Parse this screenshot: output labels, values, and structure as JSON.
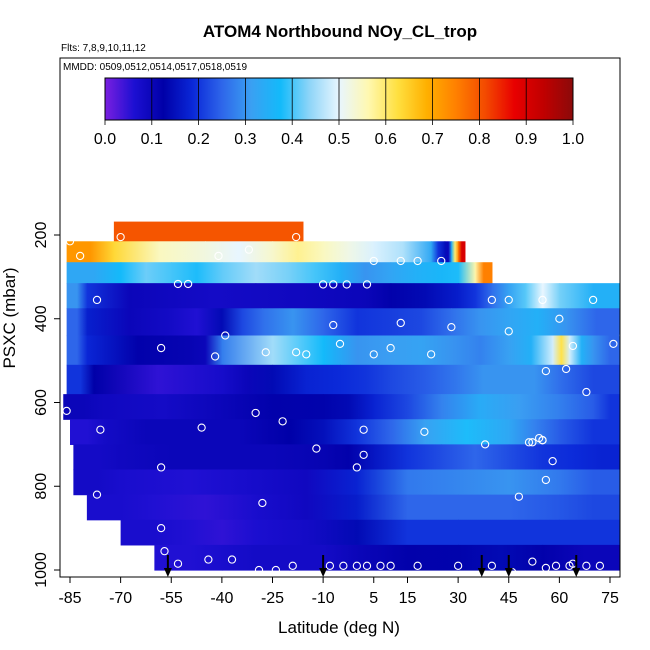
{
  "chart_data": {
    "type": "heatmap",
    "title": "ATOM4 Northbound NOy_CL_trop",
    "subtitle_flights": "Flts: 7,8,9,10,11,12",
    "subtitle_dates": "MMDD: 0509,0512,0514,0517,0518,0519",
    "xlabel": "Latitude (deg N)",
    "ylabel": "PSXC (mbar)",
    "xlim": [
      -87,
      83
    ],
    "ylim": [
      1000,
      120
    ],
    "x_ticks": [
      -85,
      -70,
      -55,
      -40,
      -25,
      -10,
      5,
      15,
      30,
      45,
      60,
      75
    ],
    "y_ticks": [
      200,
      400,
      600,
      800,
      1000
    ],
    "colorbar": {
      "range": [
        0.0,
        1.0
      ],
      "ticks": [
        "0.0",
        "0.1",
        "0.2",
        "0.3",
        "0.4",
        "0.5",
        "0.6",
        "0.7",
        "0.8",
        "0.9",
        "1.0"
      ],
      "colors": [
        "#7a1fe0",
        "#1c0fd2",
        "#0000a8",
        "#0a28d8",
        "#2e66ea",
        "#3aa0f2",
        "#13bafa",
        "#8fd5f8",
        "#e8f6ff",
        "#fff8b0",
        "#ffe040",
        "#ffb000",
        "#ff8000",
        "#f34a00",
        "#e80000",
        "#c00000",
        "#8b0a0a"
      ]
    },
    "legend": "colorbar top, horizontal",
    "bands": [
      {
        "p_top": 168,
        "p_bot": 215,
        "segments": [
          [
            -72,
            -16,
            0.8
          ]
        ]
      },
      {
        "p_top": 215,
        "p_bot": 265,
        "segments": [
          [
            -86,
            -72,
            0.72
          ],
          [
            -72,
            -45,
            0.55
          ],
          [
            -45,
            -25,
            0.5
          ],
          [
            -25,
            -10,
            0.58
          ],
          [
            -10,
            5,
            0.52
          ],
          [
            5,
            22,
            0.46
          ],
          [
            22,
            26,
            0.2
          ],
          [
            26,
            28,
            0.1
          ],
          [
            28,
            30,
            0.6
          ],
          [
            30,
            32,
            0.9
          ]
        ]
      },
      {
        "p_top": 265,
        "p_bot": 315,
        "segments": [
          [
            -86,
            -70,
            0.33
          ],
          [
            -70,
            -55,
            0.42
          ],
          [
            -55,
            -40,
            0.38
          ],
          [
            -40,
            -20,
            0.45
          ],
          [
            -20,
            -5,
            0.4
          ],
          [
            -5,
            10,
            0.3
          ],
          [
            10,
            25,
            0.35
          ],
          [
            25,
            35,
            0.38
          ],
          [
            35,
            40,
            0.75
          ]
        ]
      },
      {
        "p_top": 315,
        "p_bot": 375,
        "segments": [
          [
            -86,
            -80,
            0.3
          ],
          [
            -80,
            -55,
            0.1
          ],
          [
            -55,
            -30,
            0.08
          ],
          [
            -30,
            -5,
            0.09
          ],
          [
            -5,
            10,
            0.1
          ],
          [
            10,
            30,
            0.14
          ],
          [
            30,
            40,
            0.2
          ],
          [
            40,
            50,
            0.32
          ],
          [
            50,
            60,
            0.5
          ],
          [
            60,
            80,
            0.35
          ]
        ]
      },
      {
        "p_top": 375,
        "p_bot": 440,
        "segments": [
          [
            -86,
            -80,
            0.25
          ],
          [
            -80,
            -55,
            0.1
          ],
          [
            -55,
            -40,
            0.06
          ],
          [
            -40,
            -28,
            0.22
          ],
          [
            -28,
            -10,
            0.3
          ],
          [
            -10,
            10,
            0.2
          ],
          [
            10,
            28,
            0.22
          ],
          [
            28,
            45,
            0.3
          ],
          [
            45,
            62,
            0.35
          ],
          [
            62,
            80,
            0.25
          ]
        ]
      },
      {
        "p_top": 440,
        "p_bot": 510,
        "segments": [
          [
            -86,
            -80,
            0.25
          ],
          [
            -80,
            -50,
            0.12
          ],
          [
            -50,
            -40,
            0.1
          ],
          [
            -40,
            -10,
            0.45
          ],
          [
            -10,
            10,
            0.3
          ],
          [
            10,
            28,
            0.32
          ],
          [
            28,
            45,
            0.28
          ],
          [
            45,
            58,
            0.35
          ],
          [
            58,
            63,
            0.62
          ],
          [
            63,
            70,
            0.35
          ],
          [
            70,
            80,
            0.25
          ]
        ]
      },
      {
        "p_top": 510,
        "p_bot": 580,
        "segments": [
          [
            -86,
            -78,
            0.2
          ],
          [
            -78,
            -40,
            0.05
          ],
          [
            -40,
            -25,
            0.1
          ],
          [
            -25,
            -5,
            0.18
          ],
          [
            -5,
            10,
            0.2
          ],
          [
            10,
            30,
            0.24
          ],
          [
            30,
            45,
            0.3
          ],
          [
            45,
            60,
            0.3
          ],
          [
            60,
            80,
            0.22
          ]
        ]
      },
      {
        "p_top": 580,
        "p_bot": 640,
        "segments": [
          [
            -87,
            -75,
            0.1
          ],
          [
            -75,
            -40,
            0.08
          ],
          [
            -40,
            -10,
            0.12
          ],
          [
            -10,
            5,
            0.14
          ],
          [
            5,
            25,
            0.22
          ],
          [
            25,
            48,
            0.34
          ],
          [
            48,
            70,
            0.28
          ],
          [
            70,
            80,
            0.2
          ]
        ]
      },
      {
        "p_top": 640,
        "p_bot": 700,
        "segments": [
          [
            -85,
            -75,
            0.06
          ],
          [
            -75,
            -50,
            0.1
          ],
          [
            -50,
            -20,
            0.1
          ],
          [
            -20,
            0,
            0.15
          ],
          [
            0,
            20,
            0.25
          ],
          [
            20,
            45,
            0.38
          ],
          [
            45,
            60,
            0.28
          ],
          [
            60,
            80,
            0.2
          ]
        ]
      },
      {
        "p_top": 700,
        "p_bot": 760,
        "segments": [
          [
            -84,
            -70,
            0.08
          ],
          [
            -70,
            -40,
            0.1
          ],
          [
            -40,
            -10,
            0.1
          ],
          [
            -10,
            5,
            0.12
          ],
          [
            5,
            25,
            0.2
          ],
          [
            25,
            45,
            0.25
          ],
          [
            45,
            65,
            0.2
          ],
          [
            65,
            80,
            0.18
          ]
        ]
      },
      {
        "p_top": 760,
        "p_bot": 820,
        "segments": [
          [
            -84,
            -70,
            0.08
          ],
          [
            -70,
            -30,
            0.06
          ],
          [
            -30,
            0,
            0.09
          ],
          [
            0,
            30,
            0.27
          ],
          [
            30,
            60,
            0.3
          ],
          [
            60,
            80,
            0.24
          ]
        ]
      },
      {
        "p_top": 820,
        "p_bot": 880,
        "segments": [
          [
            -80,
            -60,
            0.07
          ],
          [
            -60,
            -30,
            0.05
          ],
          [
            -30,
            0,
            0.09
          ],
          [
            0,
            30,
            0.25
          ],
          [
            30,
            60,
            0.25
          ],
          [
            60,
            80,
            0.22
          ]
        ]
      },
      {
        "p_top": 880,
        "p_bot": 940,
        "segments": [
          [
            -70,
            -50,
            0.07
          ],
          [
            -50,
            -30,
            0.05
          ],
          [
            -30,
            0,
            0.08
          ],
          [
            0,
            30,
            0.2
          ],
          [
            30,
            60,
            0.2
          ],
          [
            60,
            80,
            0.2
          ]
        ]
      },
      {
        "p_top": 940,
        "p_bot": 1000,
        "segments": [
          [
            -60,
            -40,
            0.06
          ],
          [
            -40,
            -20,
            0.08
          ],
          [
            -20,
            0,
            0.08
          ],
          [
            0,
            30,
            0.12
          ],
          [
            30,
            55,
            0.14
          ],
          [
            55,
            80,
            0.1
          ]
        ]
      }
    ],
    "points": [
      [
        -85,
        215
      ],
      [
        -82,
        250
      ],
      [
        -70,
        205
      ],
      [
        -77,
        355
      ],
      [
        -50,
        317
      ],
      [
        -53,
        317
      ],
      [
        -41,
        250
      ],
      [
        -32,
        235
      ],
      [
        -18,
        205
      ],
      [
        -10,
        318
      ],
      [
        -7,
        318
      ],
      [
        -3,
        318
      ],
      [
        3,
        318
      ],
      [
        5,
        262
      ],
      [
        13,
        262
      ],
      [
        18,
        262
      ],
      [
        25,
        262
      ],
      [
        40,
        355
      ],
      [
        45,
        355
      ],
      [
        55,
        355
      ],
      [
        67,
        268
      ],
      [
        69,
        275
      ],
      [
        70,
        355
      ],
      [
        60,
        400
      ],
      [
        79,
        440
      ],
      [
        45,
        430
      ],
      [
        28,
        420
      ],
      [
        13,
        410
      ],
      [
        -7,
        415
      ],
      [
        -39,
        440
      ],
      [
        -58,
        470
      ],
      [
        -42,
        490
      ],
      [
        -27,
        480
      ],
      [
        -18,
        480
      ],
      [
        -15,
        485
      ],
      [
        -5,
        460
      ],
      [
        5,
        485
      ],
      [
        10,
        470
      ],
      [
        22,
        485
      ],
      [
        64,
        465
      ],
      [
        76,
        460
      ],
      [
        62,
        520
      ],
      [
        56,
        525
      ],
      [
        68,
        575
      ],
      [
        -86,
        620
      ],
      [
        -30,
        625
      ],
      [
        -22,
        645
      ],
      [
        -46,
        660
      ],
      [
        -76,
        665
      ],
      [
        2,
        665
      ],
      [
        20,
        670
      ],
      [
        38,
        700
      ],
      [
        51,
        695
      ],
      [
        52,
        695
      ],
      [
        54,
        685
      ],
      [
        55,
        690
      ],
      [
        -12,
        710
      ],
      [
        -58,
        755
      ],
      [
        0,
        755
      ],
      [
        2,
        725
      ],
      [
        55,
        690
      ],
      [
        58,
        740
      ],
      [
        56,
        785
      ],
      [
        -28,
        840
      ],
      [
        -77,
        820
      ],
      [
        -58,
        900
      ],
      [
        48,
        825
      ],
      [
        -57,
        955
      ],
      [
        -53,
        985
      ],
      [
        -44,
        975
      ],
      [
        -37,
        975
      ],
      [
        -19,
        990
      ],
      [
        -8,
        990
      ],
      [
        -4,
        990
      ],
      [
        0,
        990
      ],
      [
        3,
        990
      ],
      [
        7,
        990
      ],
      [
        10,
        990
      ],
      [
        18,
        990
      ],
      [
        30,
        990
      ],
      [
        40,
        990
      ],
      [
        52,
        980
      ],
      [
        56,
        995
      ],
      [
        59,
        990
      ],
      [
        63,
        990
      ],
      [
        64,
        985
      ],
      [
        68,
        990
      ],
      [
        72,
        990
      ],
      [
        82,
        990
      ],
      [
        83,
        1000
      ],
      [
        46,
        1005
      ],
      [
        -29,
        1000
      ],
      [
        -24,
        1000
      ]
    ],
    "arrows_latitude": [
      -56,
      -10,
      37,
      45,
      65
    ]
  }
}
